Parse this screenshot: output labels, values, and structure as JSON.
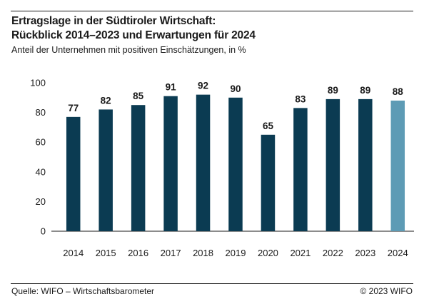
{
  "header": {
    "title_line1": "Ertragslage in der Südtiroler Wirtschaft:",
    "title_line2": "Rückblick 2014–2023 und Erwartungen für 2024",
    "subtitle": "Anteil der Unternehmen mit positiven Einschätzungen, in %"
  },
  "footer": {
    "source": "Quelle: WIFO – Wirtschaftsbarometer",
    "copyright": "© 2023 WIFO"
  },
  "chart_data": {
    "type": "bar",
    "categories": [
      "2014",
      "2015",
      "2016",
      "2017",
      "2018",
      "2019",
      "2020",
      "2021",
      "2022",
      "2023",
      "2024"
    ],
    "values": [
      77,
      82,
      85,
      91,
      92,
      90,
      65,
      83,
      89,
      89,
      88
    ],
    "data_labels": [
      "77",
      "82",
      "85",
      "91",
      "92",
      "90",
      "65",
      "83",
      "89",
      "89",
      "88"
    ],
    "ylim": [
      0,
      100
    ],
    "yticks": [
      "0",
      "20",
      "40",
      "60",
      "80",
      "100"
    ],
    "grid": false,
    "colors": {
      "actual": "#0b3b52",
      "forecast": "#5d9bb5"
    },
    "forecast_index": 10
  }
}
